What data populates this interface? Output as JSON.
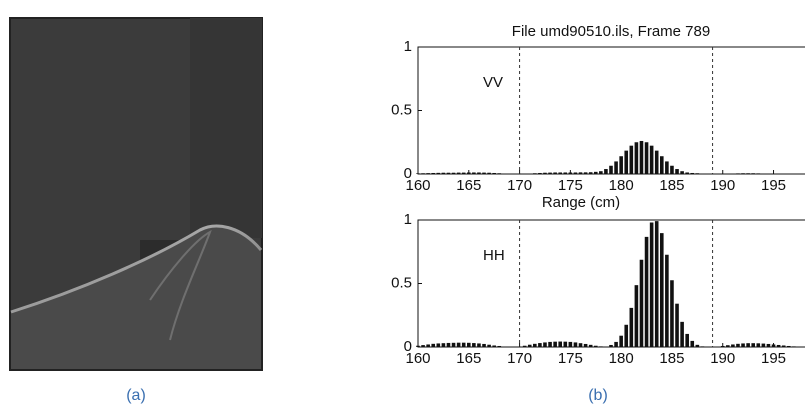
{
  "chart_data": [
    {
      "type": "stem",
      "title": "File umd90510.ils, Frame 789",
      "label": "VV",
      "xlabel": "Range (cm)",
      "x": [
        160,
        160.5,
        161,
        161.5,
        162,
        162.5,
        163,
        163.5,
        164,
        164.5,
        165,
        165.5,
        166,
        166.5,
        167,
        167.5,
        168,
        168.5,
        169,
        169.5,
        170,
        170.5,
        171,
        171.5,
        172,
        172.5,
        173,
        173.5,
        174,
        174.5,
        175,
        175.5,
        176,
        176.5,
        177,
        177.5,
        178,
        178.5,
        179,
        179.5,
        180,
        180.5,
        181,
        181.5,
        182,
        182.5,
        183,
        183.5,
        184,
        184.5,
        185,
        185.5,
        186,
        186.5,
        187,
        187.5,
        188,
        188.5,
        189,
        189.5,
        190,
        190.5,
        191,
        191.5,
        192,
        192.5,
        193,
        193.5,
        194,
        194.5,
        195,
        195.5,
        196,
        196.5,
        197,
        197.5,
        198
      ],
      "values": [
        0.005,
        0.006,
        0.007,
        0.008,
        0.009,
        0.01,
        0.01,
        0.01,
        0.011,
        0.011,
        0.012,
        0.012,
        0.012,
        0.011,
        0.01,
        0.008,
        0.006,
        0.004,
        0.002,
        0.001,
        0.001,
        0.002,
        0.004,
        0.006,
        0.008,
        0.01,
        0.011,
        0.012,
        0.012,
        0.012,
        0.012,
        0.012,
        0.013,
        0.013,
        0.014,
        0.017,
        0.022,
        0.039,
        0.065,
        0.099,
        0.14,
        0.184,
        0.223,
        0.25,
        0.26,
        0.25,
        0.223,
        0.184,
        0.14,
        0.099,
        0.065,
        0.039,
        0.022,
        0.012,
        0.008,
        0.006,
        0.004,
        0.002,
        0.001,
        0.001,
        0.002,
        0.003,
        0.004,
        0.005,
        0.006,
        0.006,
        0.006,
        0.005,
        0.004,
        0.003,
        0.002,
        0.002,
        0.001,
        0.001,
        0.001,
        0.001,
        0.001
      ],
      "color": "#111111",
      "markers": [
        170,
        189
      ],
      "xlim": [
        160,
        198
      ],
      "xticks": [
        160,
        165,
        170,
        175,
        180,
        185,
        190,
        195
      ],
      "ylim": [
        0,
        1
      ],
      "yticks": [
        0,
        0.5,
        1
      ]
    },
    {
      "type": "stem",
      "label": "HH",
      "x": [
        160,
        160.5,
        161,
        161.5,
        162,
        162.5,
        163,
        163.5,
        164,
        164.5,
        165,
        165.5,
        166,
        166.5,
        167,
        167.5,
        168,
        168.5,
        169,
        169.5,
        170,
        170.5,
        171,
        171.5,
        172,
        172.5,
        173,
        173.5,
        174,
        174.5,
        175,
        175.5,
        176,
        176.5,
        177,
        177.5,
        178,
        178.5,
        179,
        179.5,
        180,
        180.5,
        181,
        181.5,
        182,
        182.5,
        183,
        183.5,
        184,
        184.5,
        185,
        185.5,
        186,
        186.5,
        187,
        187.5,
        188,
        188.5,
        189,
        189.5,
        190,
        190.5,
        191,
        191.5,
        192,
        192.5,
        193,
        193.5,
        194,
        194.5,
        195,
        195.5,
        196,
        196.5,
        197,
        197.5,
        198
      ],
      "values": [
        0.01,
        0.015,
        0.02,
        0.025,
        0.028,
        0.03,
        0.032,
        0.033,
        0.034,
        0.034,
        0.033,
        0.031,
        0.028,
        0.024,
        0.018,
        0.012,
        0.008,
        0.004,
        0.001,
        0.001,
        0.004,
        0.01,
        0.018,
        0.025,
        0.031,
        0.036,
        0.04,
        0.042,
        0.043,
        0.042,
        0.04,
        0.036,
        0.03,
        0.024,
        0.017,
        0.01,
        0.005,
        0.003,
        0.016,
        0.04,
        0.089,
        0.175,
        0.308,
        0.487,
        0.687,
        0.867,
        0.98,
        0.991,
        0.897,
        0.726,
        0.526,
        0.341,
        0.198,
        0.103,
        0.048,
        0.017,
        0.005,
        0.002,
        0.001,
        0.003,
        0.008,
        0.014,
        0.02,
        0.025,
        0.028,
        0.03,
        0.03,
        0.029,
        0.027,
        0.024,
        0.02,
        0.016,
        0.012,
        0.008,
        0.005,
        0.003,
        0.002
      ],
      "color": "#111111",
      "markers": [
        170,
        189
      ],
      "xlim": [
        160,
        198
      ],
      "xticks": [
        160,
        165,
        170,
        175,
        180,
        185,
        190,
        195
      ],
      "ylim": [
        0,
        1
      ],
      "yticks": [
        0,
        0.5,
        1
      ]
    }
  ],
  "captions": [
    "(a)",
    "(b)"
  ]
}
